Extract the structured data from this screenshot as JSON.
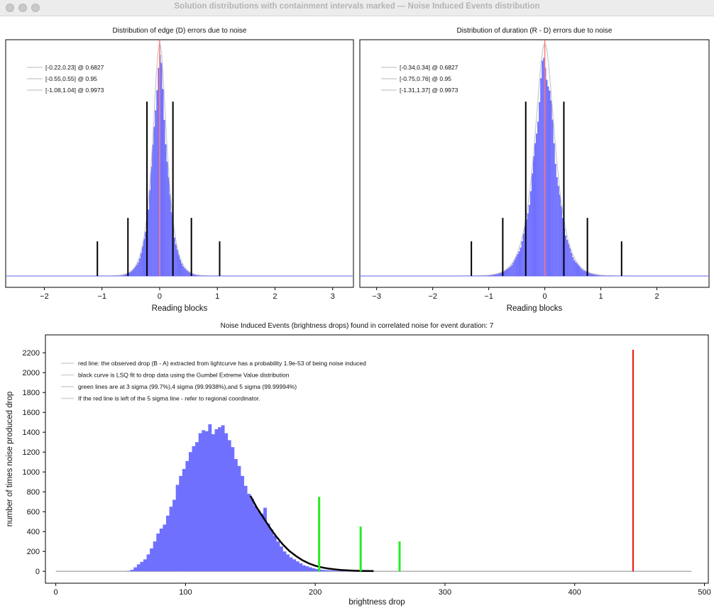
{
  "window": {
    "title": "Solution distributions with containment intervals marked --- Noise Induced Events distribution"
  },
  "chart_data": [
    {
      "type": "bar",
      "title": "Distribution of edge (D) errors due to noise",
      "xlabel": "Reading blocks",
      "ylabel": "",
      "xlim": [
        -2.67,
        3.36
      ],
      "xticks": [
        -2,
        -1,
        0,
        1,
        2,
        3
      ],
      "distribution": {
        "center": 0.0,
        "sigma": 0.155,
        "peak_relative": 1.0
      },
      "legend": {
        "placement": "top-left",
        "entries": [
          "[-0.22,0.23] @ 0.6827",
          "[-0.55,0.55] @ 0.95",
          "[-1.08,1.04] @ 0.9973"
        ]
      },
      "intervals": [
        {
          "low": -0.22,
          "high": 0.23,
          "confidence": 0.6827,
          "marker_height": 0.78
        },
        {
          "low": -0.55,
          "high": 0.55,
          "confidence": 0.95,
          "marker_height": 0.26
        },
        {
          "low": -1.08,
          "high": 1.04,
          "confidence": 0.9973,
          "marker_height": 0.155
        }
      ],
      "reference_line": 0,
      "colors": {
        "bars": "#7070ff",
        "envelope": "#c8c8c8",
        "reference": "#ff7a7a",
        "markers": "#000000"
      }
    },
    {
      "type": "bar",
      "title": "Distribution of duration (R - D) errors due to noise",
      "xlabel": "Reading blocks",
      "ylabel": "",
      "xlim": [
        -3.3,
        2.93
      ],
      "xticks": [
        -3,
        -2,
        -1,
        0,
        1,
        2
      ],
      "distribution": {
        "center": 0.0,
        "sigma": 0.23,
        "peak_relative": 1.0
      },
      "legend": {
        "placement": "top-left",
        "entries": [
          "[-0.34,0.34] @ 0.6827",
          "[-0.75,0.76] @ 0.95",
          "[-1.31,1.37] @ 0.9973"
        ]
      },
      "intervals": [
        {
          "low": -0.34,
          "high": 0.34,
          "confidence": 0.6827,
          "marker_height": 0.78
        },
        {
          "low": -0.75,
          "high": 0.76,
          "confidence": 0.95,
          "marker_height": 0.26
        },
        {
          "low": -1.31,
          "high": 1.37,
          "confidence": 0.9973,
          "marker_height": 0.155
        }
      ],
      "reference_line": 0,
      "colors": {
        "bars": "#7070ff",
        "envelope": "#c8c8c8",
        "reference": "#ff7a7a",
        "markers": "#000000"
      }
    },
    {
      "type": "bar",
      "title": "Noise Induced Events (brightness drops) found in correlated noise for event duration: 7",
      "xlabel": "brightness drop",
      "ylabel": "number of times noise produced drop",
      "xlim": [
        -8,
        503
      ],
      "ylim": [
        -120,
        2380
      ],
      "xticks": [
        0,
        100,
        200,
        300,
        400,
        500
      ],
      "yticks": [
        0,
        200,
        400,
        600,
        800,
        1000,
        1200,
        1400,
        1600,
        1800,
        2000,
        2200
      ],
      "histogram": {
        "bin_width": 2.5,
        "bin_starts": [
          55,
          57.5,
          60,
          62.5,
          65,
          67.5,
          70,
          72.5,
          75,
          77.5,
          80,
          82.5,
          85,
          87.5,
          90,
          92.5,
          95,
          97.5,
          100,
          102.5,
          105,
          107.5,
          110,
          112.5,
          115,
          117.5,
          120,
          122.5,
          125,
          127.5,
          130,
          132.5,
          135,
          137.5,
          140,
          142.5,
          145,
          147.5,
          150,
          152.5,
          155,
          157.5,
          160,
          162.5,
          165,
          167.5,
          170,
          172.5,
          175,
          177.5,
          180,
          182.5,
          185,
          187.5,
          190,
          192.5,
          195,
          197.5,
          200,
          202.5,
          205,
          207.5,
          210,
          212.5,
          215,
          217.5,
          220,
          222.5,
          225,
          227.5,
          230
        ],
        "counts": [
          5,
          15,
          40,
          70,
          95,
          120,
          170,
          230,
          300,
          380,
          430,
          470,
          560,
          650,
          720,
          870,
          960,
          1030,
          1110,
          1200,
          1260,
          1300,
          1390,
          1420,
          1410,
          1480,
          1380,
          1430,
          1450,
          1470,
          1390,
          1320,
          1250,
          1130,
          1060,
          960,
          860,
          780,
          730,
          660,
          610,
          580,
          640,
          480,
          420,
          360,
          300,
          250,
          200,
          170,
          140,
          120,
          100,
          80,
          60,
          50,
          40,
          30,
          22,
          18,
          14,
          12,
          10,
          8,
          6,
          5,
          4,
          3,
          2,
          2,
          1
        ]
      },
      "fit_curve": {
        "x": [
          150,
          155,
          160,
          165,
          170,
          175,
          180,
          185,
          190,
          195,
          200,
          205,
          210,
          215,
          220,
          225,
          230,
          235,
          240,
          245
        ],
        "y": [
          760,
          640,
          540,
          440,
          350,
          270,
          205,
          155,
          112,
          80,
          56,
          39,
          27,
          19,
          13,
          9,
          6,
          4,
          3,
          2
        ]
      },
      "baseline": {
        "from": 0,
        "to": 490
      },
      "sigma_lines": [
        {
          "label": "3 sigma",
          "x": 203,
          "height": 750
        },
        {
          "label": "4 sigma",
          "x": 235,
          "height": 450
        },
        {
          "label": "5 sigma",
          "x": 265,
          "height": 300
        }
      ],
      "observed_drop": {
        "x": 445,
        "height": 2230
      },
      "legend": {
        "placement": "top-left",
        "entries": [
          "red line: the observed drop (B - A) extracted from lightcurve has a probability 1.9e-53 of being noise induced",
          "black curve is LSQ fit to drop data using the Gumbel Extreme Value distribution",
          "green lines are at 3 sigma (99.7%),4 sigma (99.9938%),and 5 sigma (99.99994%)",
          "If the red line is left of the 5 sigma line - refer to regional coordinator."
        ]
      },
      "colors": {
        "bars": "#7070ff",
        "fit": "#000000",
        "sigma": "#22ee22",
        "observed": "#ee1111",
        "baseline": "#b0b0b0"
      }
    }
  ]
}
